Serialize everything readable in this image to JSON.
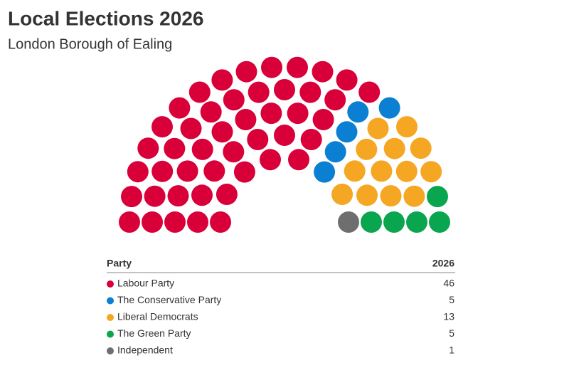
{
  "chart_data": {
    "type": "parliament",
    "title": "Local Elections 2026",
    "subtitle": "London Borough of Ealing",
    "categories": [
      "Labour Party",
      "The Conservative Party",
      "Liberal Democrats",
      "The Green Party",
      "Independent"
    ],
    "values": [
      46,
      5,
      13,
      5,
      1
    ],
    "colors": [
      "#d9003a",
      "#0b7fd1",
      "#f5a623",
      "#0aa54f",
      "#6e6e6e"
    ],
    "table_header": [
      "Party",
      "2026"
    ]
  }
}
